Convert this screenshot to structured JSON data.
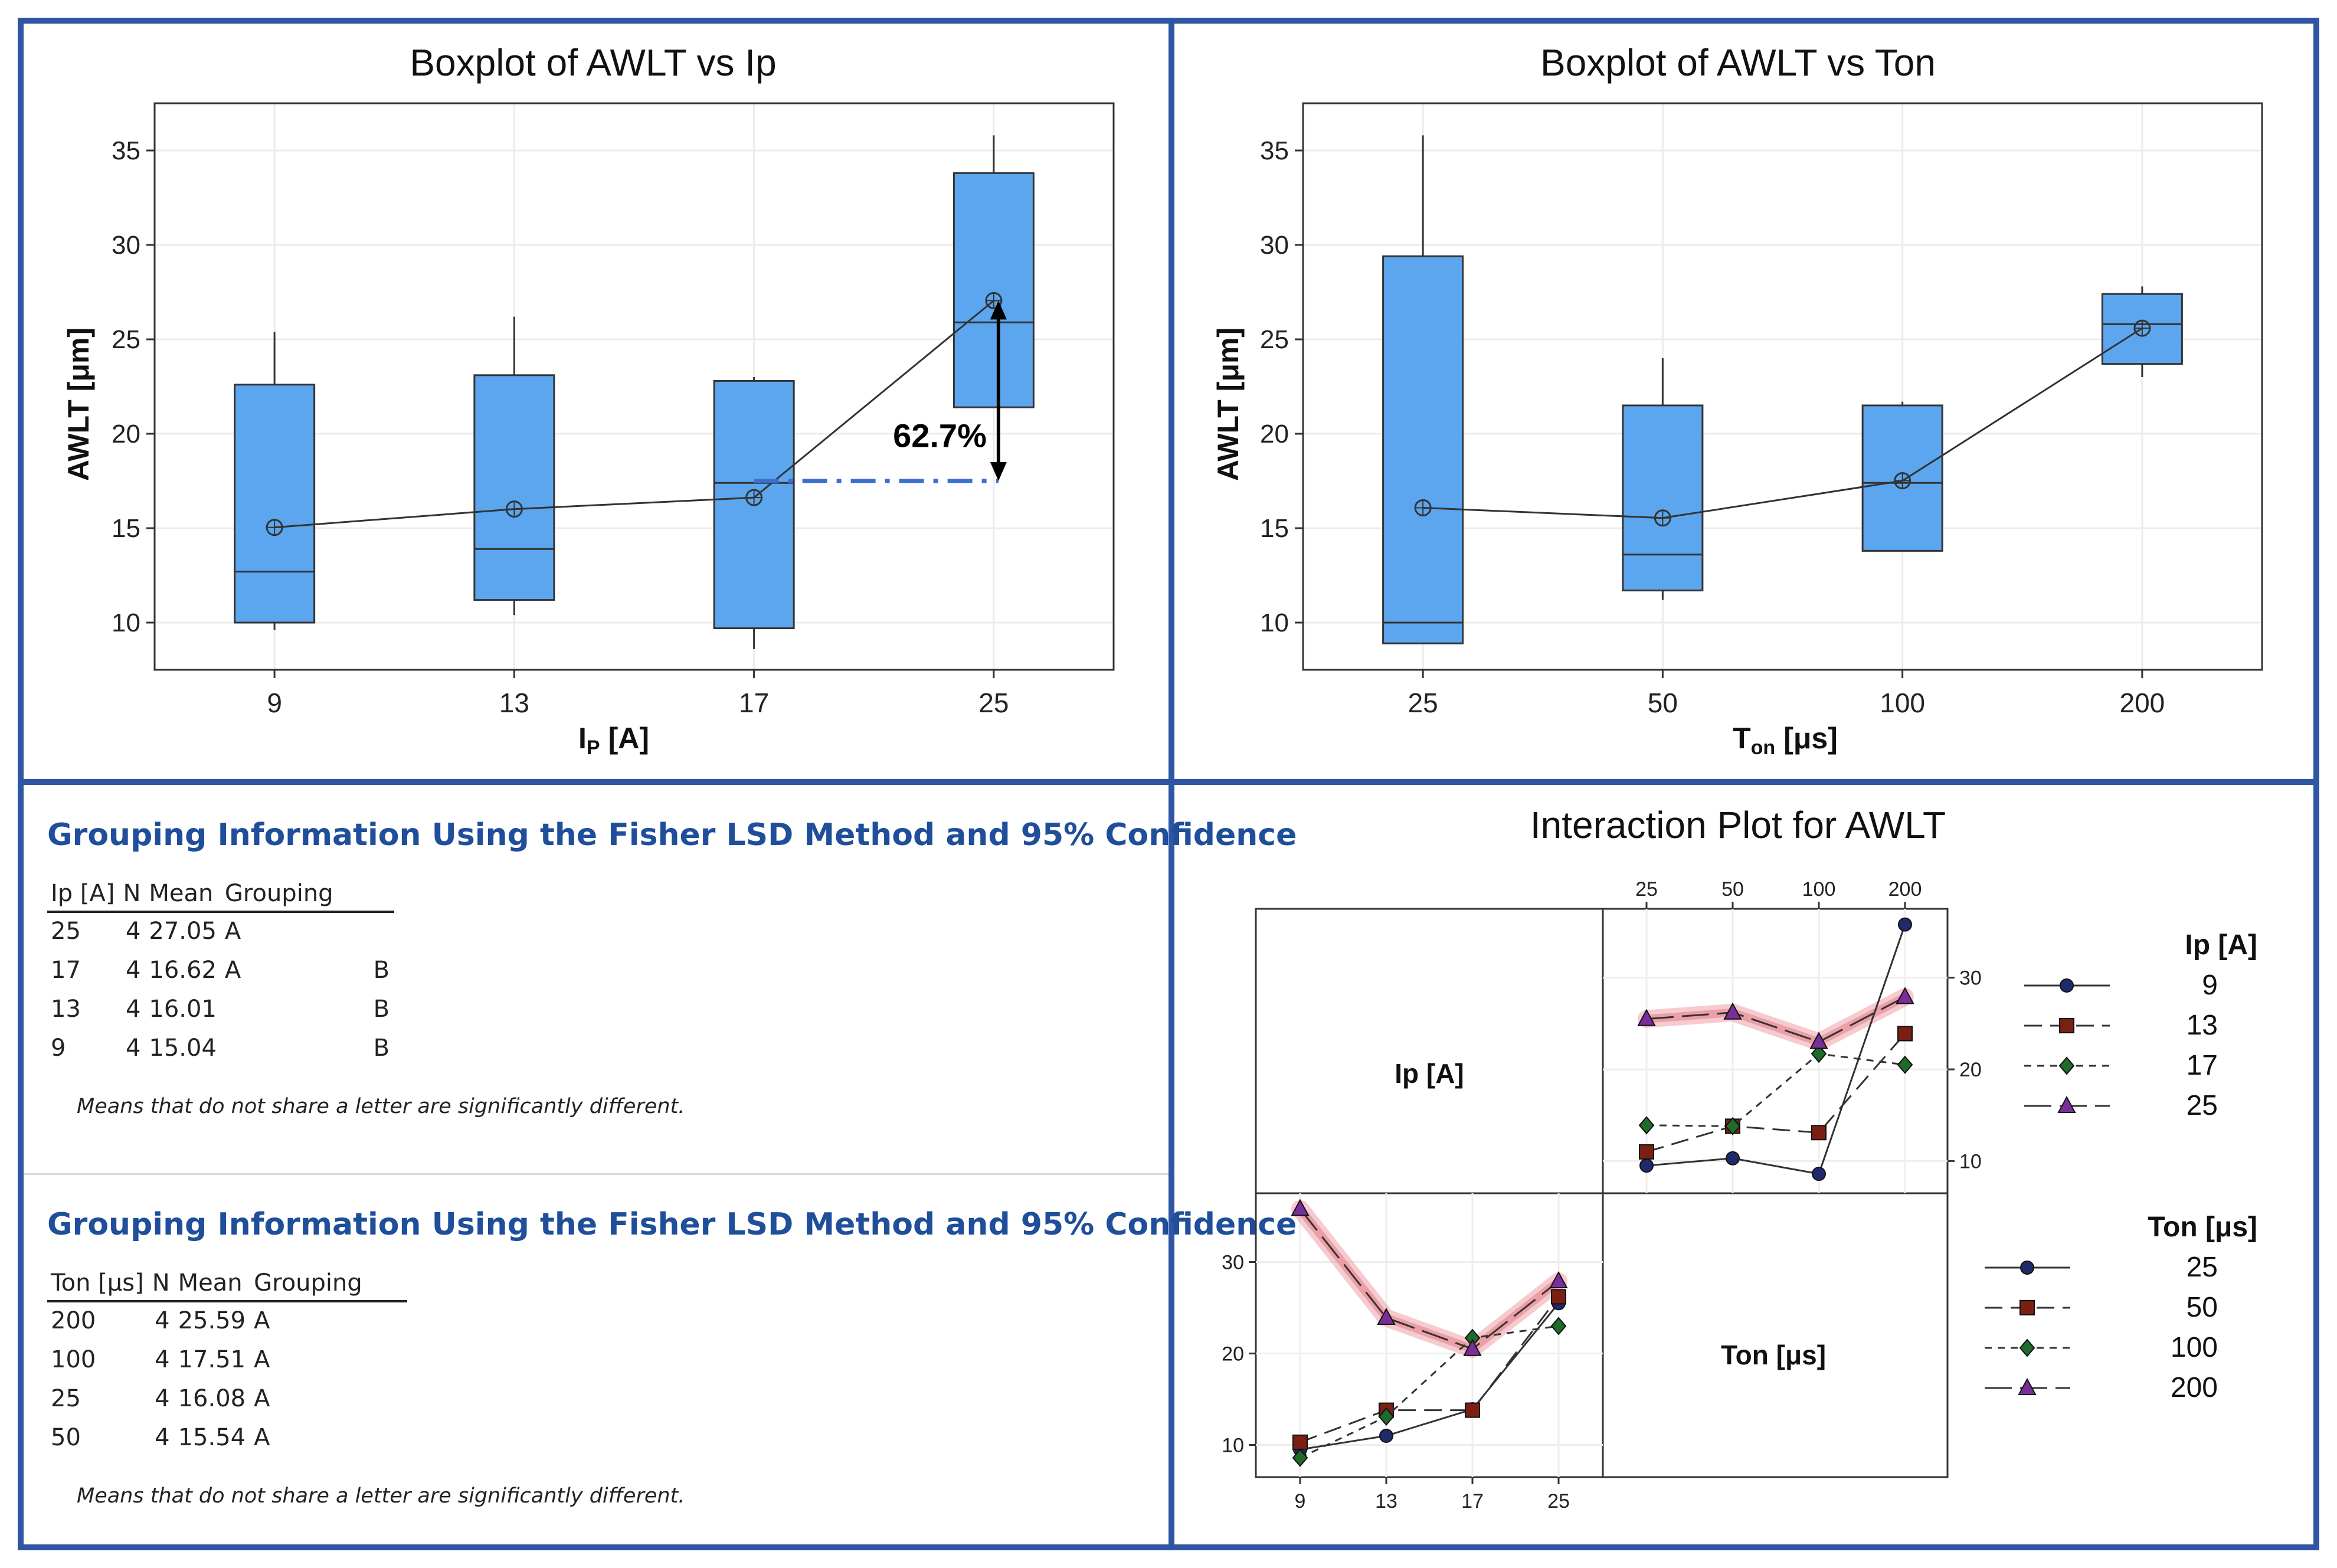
{
  "colors": {
    "border": "#2f56a3",
    "box_fill": "#5ca6ef",
    "title_blue": "#1f4e9a",
    "dashdot_blue": "#3a6fd0",
    "highlight": "#e88b94",
    "series_ip": [
      "#1f2a6b",
      "#7a1f12",
      "#1f6b2a",
      "#7a2e9a"
    ]
  },
  "chart_data": [
    {
      "type": "box",
      "title": "Boxplot of AWLT vs Ip",
      "xlabel_main": "I",
      "xlabel_sub": "P",
      "xlabel_unit": "[A]",
      "ylabel": "AWLT [μm]",
      "ylim": [
        7.5,
        37.5
      ],
      "yticks": [
        10,
        15,
        20,
        25,
        30,
        35
      ],
      "categories": [
        "9",
        "13",
        "17",
        "25"
      ],
      "boxes": [
        {
          "min": 9.6,
          "q1": 10.0,
          "median": 12.7,
          "q3": 22.6,
          "max": 25.4,
          "mean": 15.04
        },
        {
          "min": 10.4,
          "q1": 11.2,
          "median": 13.9,
          "q3": 23.1,
          "max": 26.2,
          "mean": 16.01
        },
        {
          "min": 8.6,
          "q1": 9.7,
          "median": 17.4,
          "q3": 22.8,
          "max": 23.0,
          "mean": 16.62
        },
        {
          "min": 21.4,
          "q1": 21.4,
          "median": 25.9,
          "q3": 33.8,
          "max": 35.8,
          "mean": 27.05
        }
      ],
      "annotation": {
        "text": "62.7%",
        "from": 17.5,
        "to": 27.05
      }
    },
    {
      "type": "box",
      "title": "Boxplot of AWLT vs Ton",
      "xlabel_main": "T",
      "xlabel_sub": "on",
      "xlabel_unit": "[μs]",
      "ylabel": "AWLT [μm]",
      "ylim": [
        7.5,
        37.5
      ],
      "yticks": [
        10,
        15,
        20,
        25,
        30,
        35
      ],
      "categories": [
        "25",
        "50",
        "100",
        "200"
      ],
      "boxes": [
        {
          "min": 8.9,
          "q1": 8.9,
          "median": 10.0,
          "q3": 29.4,
          "max": 35.8,
          "mean": 16.08
        },
        {
          "min": 11.2,
          "q1": 11.7,
          "median": 13.6,
          "q3": 21.5,
          "max": 24.0,
          "mean": 15.54
        },
        {
          "min": 13.8,
          "q1": 13.8,
          "median": 17.4,
          "q3": 21.5,
          "max": 21.7,
          "mean": 17.51
        },
        {
          "min": 23.0,
          "q1": 23.7,
          "median": 25.8,
          "q3": 27.4,
          "max": 27.8,
          "mean": 25.59
        }
      ]
    },
    {
      "type": "interaction",
      "title": "Interaction Plot for AWLT",
      "factor_a_label": "Ip [A]",
      "factor_b_label": "Ton [μs]",
      "factor_a_levels": [
        "9",
        "13",
        "17",
        "25"
      ],
      "factor_b_levels": [
        "25",
        "50",
        "100",
        "200"
      ],
      "y_ticks": [
        10,
        20,
        30
      ],
      "y_range": [
        7,
        37
      ],
      "cells": [
        [
          9.5,
          10.3,
          8.6,
          35.8
        ],
        [
          11.0,
          13.8,
          13.1,
          23.9
        ],
        [
          13.9,
          13.8,
          21.7,
          20.5
        ],
        [
          25.5,
          26.2,
          23.0,
          27.9
        ]
      ],
      "highlight_series_a": "25",
      "highlight_series_b": "200"
    }
  ],
  "lsd_ip": {
    "title": "Grouping Information Using the Fisher LSD Method and 95% Confidence",
    "headers": [
      "Ip [A]",
      "N",
      "Mean",
      "Grouping"
    ],
    "rows": [
      [
        "25",
        "4",
        "27.05",
        "A",
        ""
      ],
      [
        "17",
        "4",
        "16.62",
        "A",
        "B"
      ],
      [
        "13",
        "4",
        "16.01",
        "",
        "B"
      ],
      [
        "9",
        "4",
        "15.04",
        "",
        "B"
      ]
    ],
    "note": "Means that do not share a letter are significantly different."
  },
  "lsd_ton": {
    "title": "Grouping Information Using the Fisher LSD Method and 95% Confidence",
    "headers": [
      "Ton [μs]",
      "N",
      "Mean",
      "Grouping"
    ],
    "rows": [
      [
        "200",
        "4",
        "25.59",
        "A"
      ],
      [
        "100",
        "4",
        "17.51",
        "A"
      ],
      [
        "25",
        "4",
        "16.08",
        "A"
      ],
      [
        "50",
        "4",
        "15.54",
        "A"
      ]
    ],
    "note": "Means that do not share a letter are significantly different."
  }
}
